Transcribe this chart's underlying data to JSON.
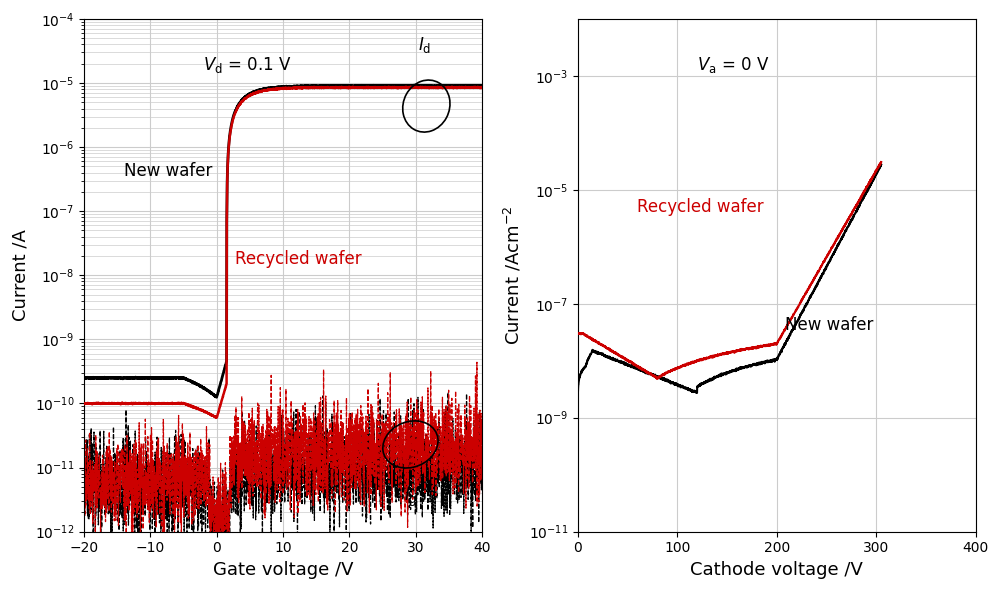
{
  "fig_width": 10.0,
  "fig_height": 5.9,
  "dpi": 100,
  "background_color": "#ffffff",
  "panel_a": {
    "xlim": [
      -20,
      40
    ],
    "ylim_log": [
      -12,
      -4
    ],
    "xlabel": "Gate voltage /V",
    "ylabel": "Current /A",
    "annotation_vd": "$\\mathit{V}_{\\mathrm{d}}$ = 0.1 V",
    "label_new": "New wafer",
    "label_recycled": "Recycled wafer",
    "color_new": "#000000",
    "color_recycled": "#cc0000",
    "grid_color": "#cccccc",
    "facecolor": "#ffffff"
  },
  "panel_b": {
    "xlim": [
      0,
      400
    ],
    "ylim_log": [
      -11,
      -2
    ],
    "xlabel": "Cathode voltage /V",
    "ylabel": "Current /Acm$^{-2}$",
    "annotation_va": "$\\mathit{V}_{\\mathrm{a}}$ = 0 V",
    "label_new": "New wafer",
    "label_recycled": "Recycled wafer",
    "color_new": "#000000",
    "color_recycled": "#cc0000",
    "grid_color": "#cccccc",
    "facecolor": "#ffffff"
  }
}
